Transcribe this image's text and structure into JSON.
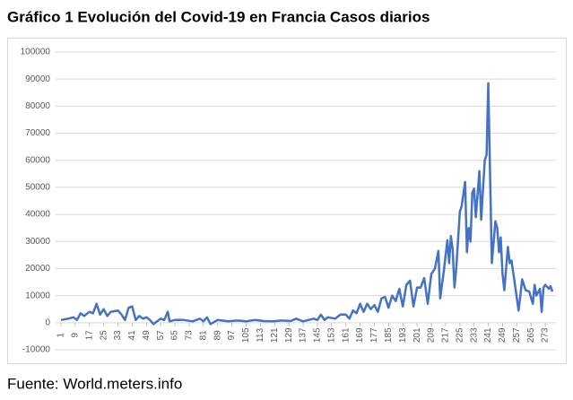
{
  "chart_data": {
    "type": "line",
    "title": "Gráfico 1 Evolución del Covid-19 en Francia Casos diarios",
    "source": "Fuente: World.meters.info",
    "x": [
      1,
      5,
      8,
      10,
      12,
      14,
      17,
      19,
      21,
      23,
      25,
      27,
      29,
      33,
      35,
      37,
      39,
      41,
      43,
      45,
      47,
      49,
      51,
      53,
      55,
      57,
      59,
      61,
      62,
      65,
      70,
      75,
      79,
      81,
      83,
      85,
      89,
      95,
      100,
      105,
      110,
      115,
      120,
      125,
      130,
      133,
      137,
      140,
      143,
      145,
      147,
      149,
      151,
      155,
      158,
      161,
      163,
      165,
      167,
      169,
      171,
      173,
      175,
      177,
      179,
      181,
      183,
      185,
      187,
      189,
      191,
      193,
      195,
      197,
      199,
      201,
      203,
      205,
      207,
      209,
      211,
      213,
      214,
      216,
      218,
      219,
      220,
      221,
      222,
      223,
      225,
      226,
      228,
      229,
      230,
      231,
      232,
      233,
      234,
      236,
      237,
      239,
      240,
      241,
      243,
      245,
      246,
      247,
      248,
      249,
      250,
      252,
      253,
      254,
      256,
      258,
      259,
      260,
      262,
      264,
      266,
      267,
      268,
      270,
      271,
      272,
      273,
      275,
      276,
      277
    ],
    "series": [
      {
        "name": "Casos diarios",
        "color": "#4472c4",
        "values": [
          1000,
          1500,
          2000,
          1000,
          3500,
          2500,
          4000,
          3500,
          7000,
          3000,
          5000,
          2500,
          4000,
          4500,
          3000,
          1000,
          5500,
          6000,
          1000,
          2500,
          1500,
          2000,
          1000,
          -500,
          500,
          1500,
          1000,
          4000,
          500,
          1000,
          1000,
          500,
          1500,
          500,
          2000,
          -500,
          1000,
          500,
          800,
          500,
          1000,
          600,
          500,
          800,
          600,
          1500,
          500,
          1000,
          1500,
          1000,
          3000,
          1000,
          2000,
          1500,
          3000,
          3000,
          1500,
          4500,
          3500,
          7000,
          4000,
          7000,
          5000,
          6500,
          4000,
          9000,
          9500,
          5500,
          10000,
          8000,
          12500,
          6000,
          14000,
          15500,
          6000,
          13000,
          13000,
          16500,
          7000,
          18000,
          20000,
          26500,
          9000,
          19000,
          30500,
          22000,
          32000,
          27000,
          13000,
          20000,
          41000,
          43000,
          52000,
          26000,
          35000,
          30000,
          48000,
          49500,
          39000,
          56000,
          38000,
          60000,
          62000,
          88500,
          22000,
          37500,
          35000,
          26000,
          31500,
          18000,
          12000,
          28000,
          22000,
          23000,
          14000,
          4500,
          10000,
          16000,
          12000,
          11500,
          7000,
          14000,
          10000,
          12500,
          4000,
          13000,
          14000,
          12500,
          13500,
          11500
        ]
      }
    ],
    "xlim": [
      -2,
      279
    ],
    "ylim": [
      -10000,
      100000
    ],
    "xticks": [
      1,
      9,
      17,
      25,
      33,
      41,
      49,
      57,
      65,
      73,
      81,
      89,
      97,
      105,
      113,
      121,
      129,
      137,
      145,
      153,
      161,
      169,
      177,
      185,
      193,
      201,
      209,
      217,
      225,
      233,
      241,
      249,
      257,
      265,
      273
    ],
    "yticks": [
      -10000,
      0,
      10000,
      20000,
      30000,
      40000,
      50000,
      60000,
      70000,
      80000,
      90000,
      100000
    ],
    "grid": true
  }
}
